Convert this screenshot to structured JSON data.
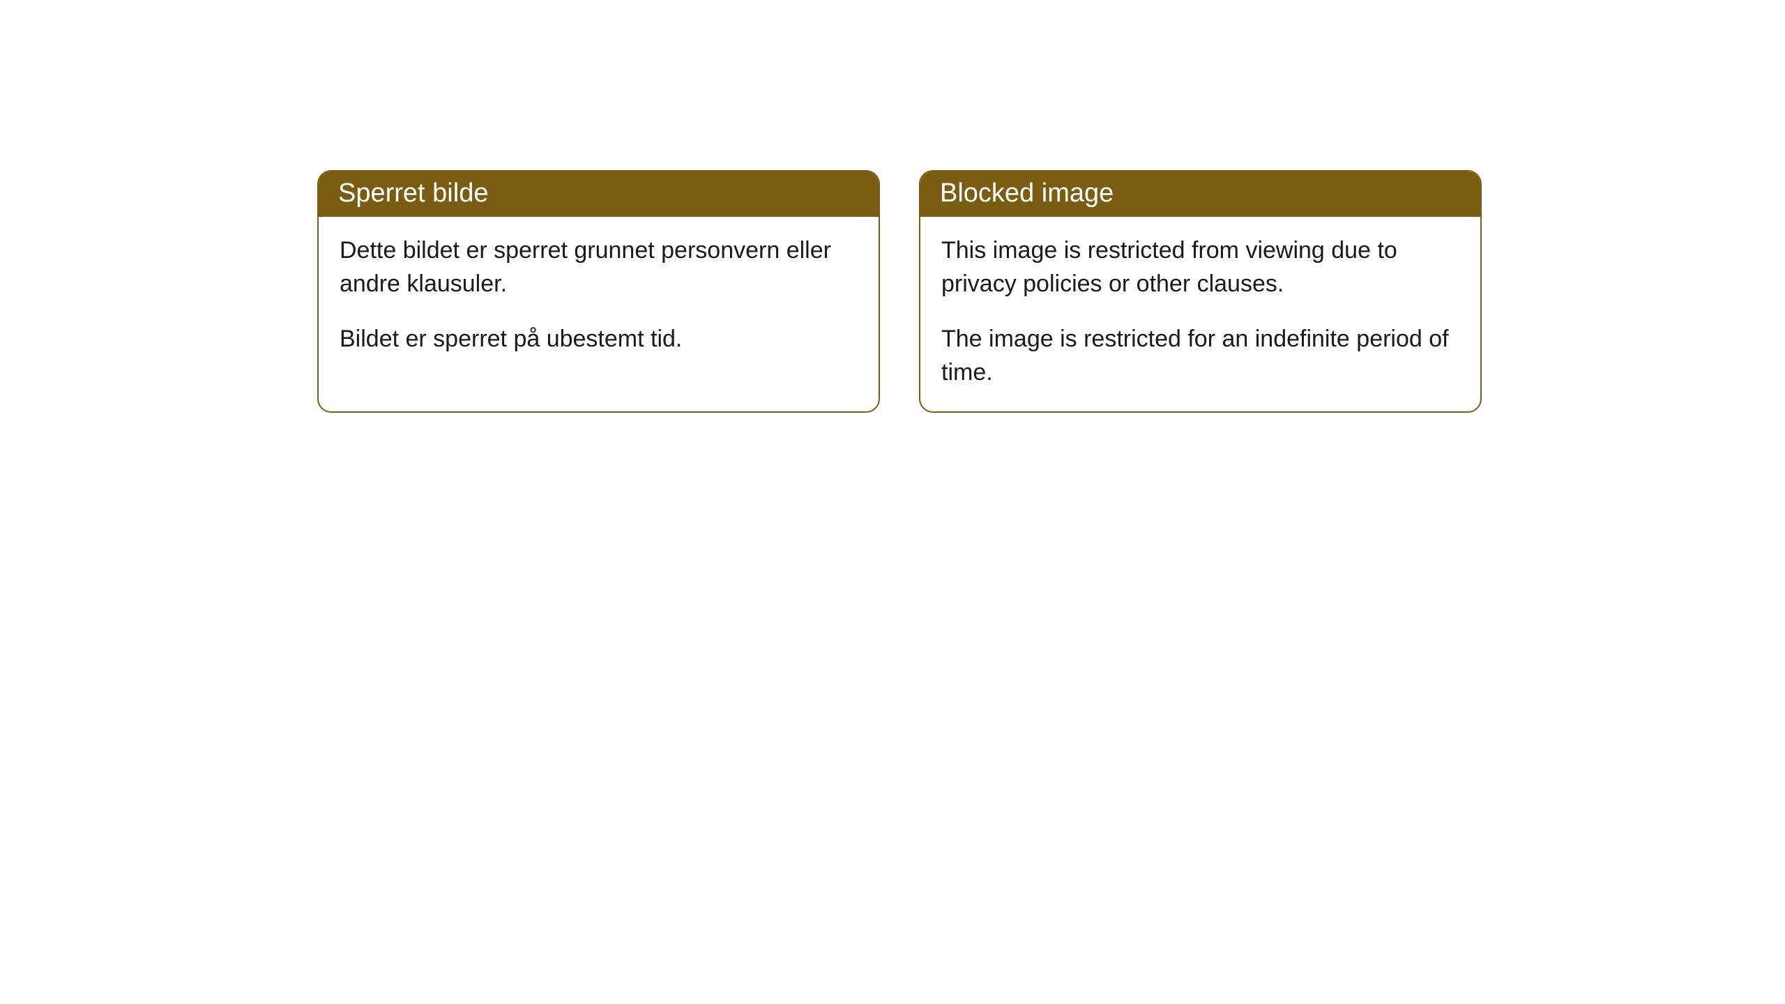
{
  "cards": [
    {
      "title": "Sperret bilde",
      "paragraph1": "Dette bildet er sperret grunnet personvern eller andre klausuler.",
      "paragraph2": "Bildet er sperret på ubestemt tid."
    },
    {
      "title": "Blocked image",
      "paragraph1": "This image is restricted from viewing due to privacy policies or other clauses.",
      "paragraph2": "The image is restricted for an indefinite period of time."
    }
  ],
  "styling": {
    "header_background": "#7a5d13",
    "header_text_color": "#ffffff",
    "body_text_color": "#1a1a1a",
    "card_border_color": "#7a5d13",
    "card_background": "#ffffff",
    "page_background": "#ffffff",
    "border_radius": 20,
    "header_font_size": 38,
    "body_font_size": 34
  }
}
